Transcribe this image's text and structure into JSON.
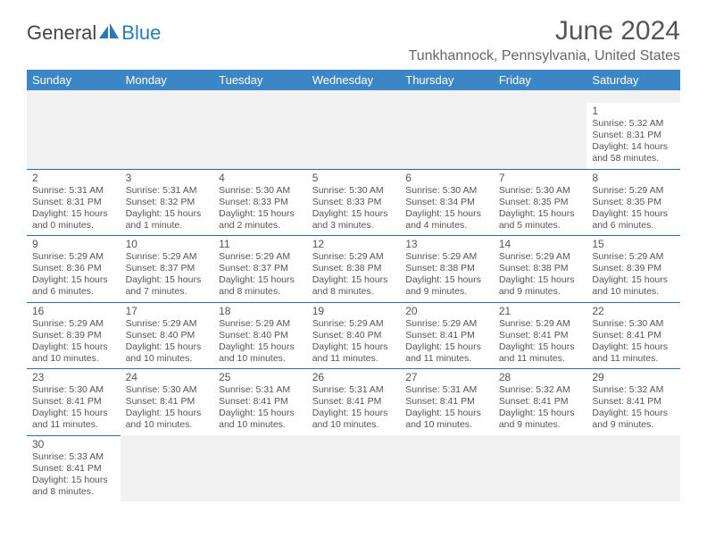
{
  "brand": {
    "name_part1": "General",
    "name_part2": "Blue",
    "text_color": "#444444",
    "accent_color": "#2a7ab9"
  },
  "title": "June 2024",
  "location": "Tunkhannock, Pennsylvania, United States",
  "header_bg": "#3d86c6",
  "header_fg": "#ffffff",
  "cell_border_color": "#2a6aa8",
  "empty_bg": "#f1f1f1",
  "text_color": "#555555",
  "font_family": "Arial, Helvetica, sans-serif",
  "day_headers": [
    "Sunday",
    "Monday",
    "Tuesday",
    "Wednesday",
    "Thursday",
    "Friday",
    "Saturday"
  ],
  "weeks": [
    [
      null,
      null,
      null,
      null,
      null,
      null,
      {
        "n": "1",
        "sr": "5:32 AM",
        "ss": "8:31 PM",
        "dl": "14 hours and 58 minutes."
      }
    ],
    [
      {
        "n": "2",
        "sr": "5:31 AM",
        "ss": "8:31 PM",
        "dl": "15 hours and 0 minutes."
      },
      {
        "n": "3",
        "sr": "5:31 AM",
        "ss": "8:32 PM",
        "dl": "15 hours and 1 minute."
      },
      {
        "n": "4",
        "sr": "5:30 AM",
        "ss": "8:33 PM",
        "dl": "15 hours and 2 minutes."
      },
      {
        "n": "5",
        "sr": "5:30 AM",
        "ss": "8:33 PM",
        "dl": "15 hours and 3 minutes."
      },
      {
        "n": "6",
        "sr": "5:30 AM",
        "ss": "8:34 PM",
        "dl": "15 hours and 4 minutes."
      },
      {
        "n": "7",
        "sr": "5:30 AM",
        "ss": "8:35 PM",
        "dl": "15 hours and 5 minutes."
      },
      {
        "n": "8",
        "sr": "5:29 AM",
        "ss": "8:35 PM",
        "dl": "15 hours and 6 minutes."
      }
    ],
    [
      {
        "n": "9",
        "sr": "5:29 AM",
        "ss": "8:36 PM",
        "dl": "15 hours and 6 minutes."
      },
      {
        "n": "10",
        "sr": "5:29 AM",
        "ss": "8:37 PM",
        "dl": "15 hours and 7 minutes."
      },
      {
        "n": "11",
        "sr": "5:29 AM",
        "ss": "8:37 PM",
        "dl": "15 hours and 8 minutes."
      },
      {
        "n": "12",
        "sr": "5:29 AM",
        "ss": "8:38 PM",
        "dl": "15 hours and 8 minutes."
      },
      {
        "n": "13",
        "sr": "5:29 AM",
        "ss": "8:38 PM",
        "dl": "15 hours and 9 minutes."
      },
      {
        "n": "14",
        "sr": "5:29 AM",
        "ss": "8:38 PM",
        "dl": "15 hours and 9 minutes."
      },
      {
        "n": "15",
        "sr": "5:29 AM",
        "ss": "8:39 PM",
        "dl": "15 hours and 10 minutes."
      }
    ],
    [
      {
        "n": "16",
        "sr": "5:29 AM",
        "ss": "8:39 PM",
        "dl": "15 hours and 10 minutes."
      },
      {
        "n": "17",
        "sr": "5:29 AM",
        "ss": "8:40 PM",
        "dl": "15 hours and 10 minutes."
      },
      {
        "n": "18",
        "sr": "5:29 AM",
        "ss": "8:40 PM",
        "dl": "15 hours and 10 minutes."
      },
      {
        "n": "19",
        "sr": "5:29 AM",
        "ss": "8:40 PM",
        "dl": "15 hours and 11 minutes."
      },
      {
        "n": "20",
        "sr": "5:29 AM",
        "ss": "8:41 PM",
        "dl": "15 hours and 11 minutes."
      },
      {
        "n": "21",
        "sr": "5:29 AM",
        "ss": "8:41 PM",
        "dl": "15 hours and 11 minutes."
      },
      {
        "n": "22",
        "sr": "5:30 AM",
        "ss": "8:41 PM",
        "dl": "15 hours and 11 minutes."
      }
    ],
    [
      {
        "n": "23",
        "sr": "5:30 AM",
        "ss": "8:41 PM",
        "dl": "15 hours and 11 minutes."
      },
      {
        "n": "24",
        "sr": "5:30 AM",
        "ss": "8:41 PM",
        "dl": "15 hours and 10 minutes."
      },
      {
        "n": "25",
        "sr": "5:31 AM",
        "ss": "8:41 PM",
        "dl": "15 hours and 10 minutes."
      },
      {
        "n": "26",
        "sr": "5:31 AM",
        "ss": "8:41 PM",
        "dl": "15 hours and 10 minutes."
      },
      {
        "n": "27",
        "sr": "5:31 AM",
        "ss": "8:41 PM",
        "dl": "15 hours and 10 minutes."
      },
      {
        "n": "28",
        "sr": "5:32 AM",
        "ss": "8:41 PM",
        "dl": "15 hours and 9 minutes."
      },
      {
        "n": "29",
        "sr": "5:32 AM",
        "ss": "8:41 PM",
        "dl": "15 hours and 9 minutes."
      }
    ],
    [
      {
        "n": "30",
        "sr": "5:33 AM",
        "ss": "8:41 PM",
        "dl": "15 hours and 8 minutes."
      },
      null,
      null,
      null,
      null,
      null,
      null
    ]
  ],
  "labels": {
    "sunrise": "Sunrise: ",
    "sunset": "Sunset: ",
    "daylight": "Daylight: "
  }
}
